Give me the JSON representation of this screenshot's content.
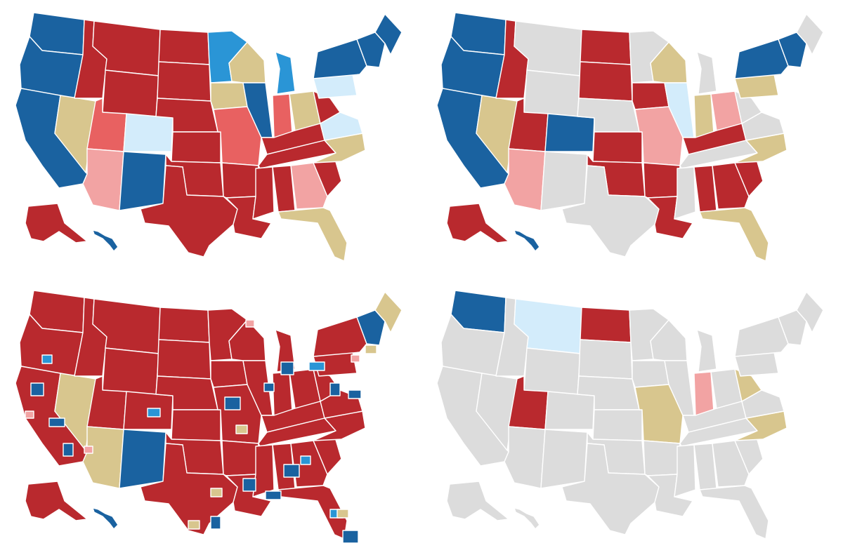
{
  "colors": {
    "solid_blue": "#1a62a0",
    "medium_blue": "#2a95d6",
    "light_blue": "#d3ecfb",
    "tossup": "#d8c68e",
    "light_red": "#f2a3a3",
    "medium_red": "#e86161",
    "solid_red": "#b9292e",
    "not_up": "#dcdcdc"
  },
  "maps": [
    {
      "id": "top-left",
      "states": {
        "WA": "solid_blue",
        "OR": "solid_blue",
        "CA": "solid_blue",
        "NV": "tossup",
        "ID": "solid_red",
        "MT": "solid_red",
        "WY": "solid_red",
        "UT": "medium_red",
        "AZ": "light_red",
        "NM": "solid_blue",
        "CO": "light_blue",
        "ND": "solid_red",
        "SD": "solid_red",
        "NE": "solid_red",
        "KS": "solid_red",
        "OK": "solid_red",
        "TX": "solid_red",
        "MN": "medium_blue",
        "IA": "tossup",
        "MO": "medium_red",
        "AR": "solid_red",
        "LA": "solid_red",
        "WI": "tossup",
        "IL": "solid_blue",
        "MI": "medium_blue",
        "IN": "medium_red",
        "OH": "tossup",
        "KY": "solid_red",
        "TN": "solid_red",
        "MS": "solid_red",
        "AL": "solid_red",
        "GA": "light_red",
        "FL": "tossup",
        "SC": "solid_red",
        "NC": "tossup",
        "VA": "light_blue",
        "WV": "solid_red",
        "PA": "light_blue",
        "NY": "solid_blue",
        "NE_": "solid_blue",
        "ME": "solid_blue",
        "AK": "solid_red",
        "HI": "solid_blue"
      }
    },
    {
      "id": "top-right",
      "states": {
        "WA": "solid_blue",
        "OR": "solid_blue",
        "CA": "solid_blue",
        "NV": "tossup",
        "ID": "solid_red",
        "MT": "not_up",
        "WY": "not_up",
        "UT": "solid_red",
        "AZ": "light_red",
        "NM": "not_up",
        "CO": "solid_blue",
        "ND": "solid_red",
        "SD": "solid_red",
        "NE": "not_up",
        "KS": "solid_red",
        "OK": "solid_red",
        "TX": "not_up",
        "MN": "not_up",
        "IA": "solid_red",
        "MO": "light_red",
        "AR": "solid_red",
        "LA": "solid_red",
        "WI": "tossup",
        "IL": "light_blue",
        "MI": "not_up",
        "IN": "tossup",
        "OH": "light_red",
        "KY": "solid_red",
        "TN": "not_up",
        "MS": "not_up",
        "AL": "solid_red",
        "GA": "solid_red",
        "FL": "tossup",
        "SC": "solid_red",
        "NC": "tossup",
        "VA": "not_up",
        "WV": "not_up",
        "PA": "tossup",
        "NY": "solid_blue",
        "NE_": "solid_blue",
        "ME": "not_up",
        "AK": "solid_red",
        "HI": "solid_blue"
      }
    },
    {
      "id": "bottom-left",
      "states": {
        "WA": "solid_red",
        "OR": "solid_red",
        "CA": "solid_red",
        "NV": "tossup",
        "ID": "solid_red",
        "MT": "solid_red",
        "WY": "solid_red",
        "UT": "solid_red",
        "AZ": "tossup",
        "NM": "solid_blue",
        "CO": "solid_red",
        "ND": "solid_red",
        "SD": "solid_red",
        "NE": "solid_red",
        "KS": "solid_red",
        "OK": "solid_red",
        "TX": "solid_red",
        "MN": "solid_red",
        "IA": "solid_red",
        "MO": "solid_red",
        "AR": "solid_red",
        "LA": "solid_red",
        "WI": "solid_red",
        "IL": "solid_red",
        "MI": "solid_red",
        "IN": "solid_red",
        "OH": "solid_red",
        "KY": "solid_red",
        "TN": "solid_red",
        "MS": "solid_red",
        "AL": "solid_red",
        "GA": "solid_red",
        "FL": "solid_red",
        "SC": "solid_red",
        "NC": "solid_red",
        "VA": "solid_red",
        "WV": "solid_red",
        "PA": "solid_red",
        "NY": "solid_red",
        "NE_": "solid_blue",
        "ME": "tossup",
        "AK": "solid_red",
        "HI": "solid_blue"
      }
    },
    {
      "id": "bottom-right",
      "states": {
        "WA": "solid_blue",
        "OR": "not_up",
        "CA": "not_up",
        "NV": "not_up",
        "ID": "not_up",
        "MT": "light_blue",
        "WY": "not_up",
        "UT": "solid_red",
        "AZ": "not_up",
        "NM": "not_up",
        "CO": "not_up",
        "ND": "solid_red",
        "SD": "not_up",
        "NE": "not_up",
        "KS": "not_up",
        "OK": "not_up",
        "TX": "not_up",
        "MN": "not_up",
        "IA": "not_up",
        "MO": "tossup",
        "AR": "not_up",
        "LA": "not_up",
        "WI": "not_up",
        "IL": "not_up",
        "MI": "not_up",
        "IN": "light_red",
        "OH": "not_up",
        "KY": "not_up",
        "TN": "not_up",
        "MS": "not_up",
        "AL": "not_up",
        "GA": "not_up",
        "FL": "not_up",
        "SC": "not_up",
        "NC": "tossup",
        "VA": "not_up",
        "WV": "tossup",
        "PA": "not_up",
        "NY": "not_up",
        "NE_": "not_up",
        "ME": "not_up",
        "AK": "not_up",
        "HI": "not_up"
      }
    }
  ]
}
